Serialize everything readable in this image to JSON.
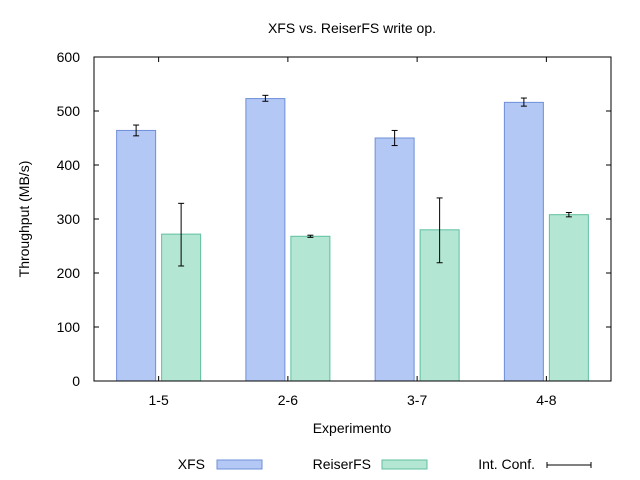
{
  "chart_data": {
    "type": "bar",
    "title": "XFS vs. ReiserFS write op.",
    "xlabel": "Experimento",
    "ylabel": "Throughput (MB/s)",
    "ylim": [
      0,
      600
    ],
    "yticks": [
      0,
      100,
      200,
      300,
      400,
      500,
      600
    ],
    "categories": [
      "1-5",
      "2-6",
      "3-7",
      "4-8"
    ],
    "grid": false,
    "legend_position": "bottom",
    "series": [
      {
        "name": "XFS",
        "color": "#b4c8f5",
        "stroke": "#6e8fd8",
        "values": [
          464,
          523,
          450,
          516
        ],
        "error": [
          [
            454,
            474
          ],
          [
            518,
            529
          ],
          [
            436,
            464
          ],
          [
            509,
            524
          ]
        ]
      },
      {
        "name": "ReiserFS",
        "color": "#b4e6d4",
        "stroke": "#5fc09e",
        "values": [
          272,
          268,
          280,
          308
        ],
        "error": [
          [
            213,
            329
          ],
          [
            266,
            270
          ],
          [
            219,
            339
          ],
          [
            304,
            312
          ]
        ]
      }
    ],
    "error_legend_label": "Int. Conf."
  }
}
